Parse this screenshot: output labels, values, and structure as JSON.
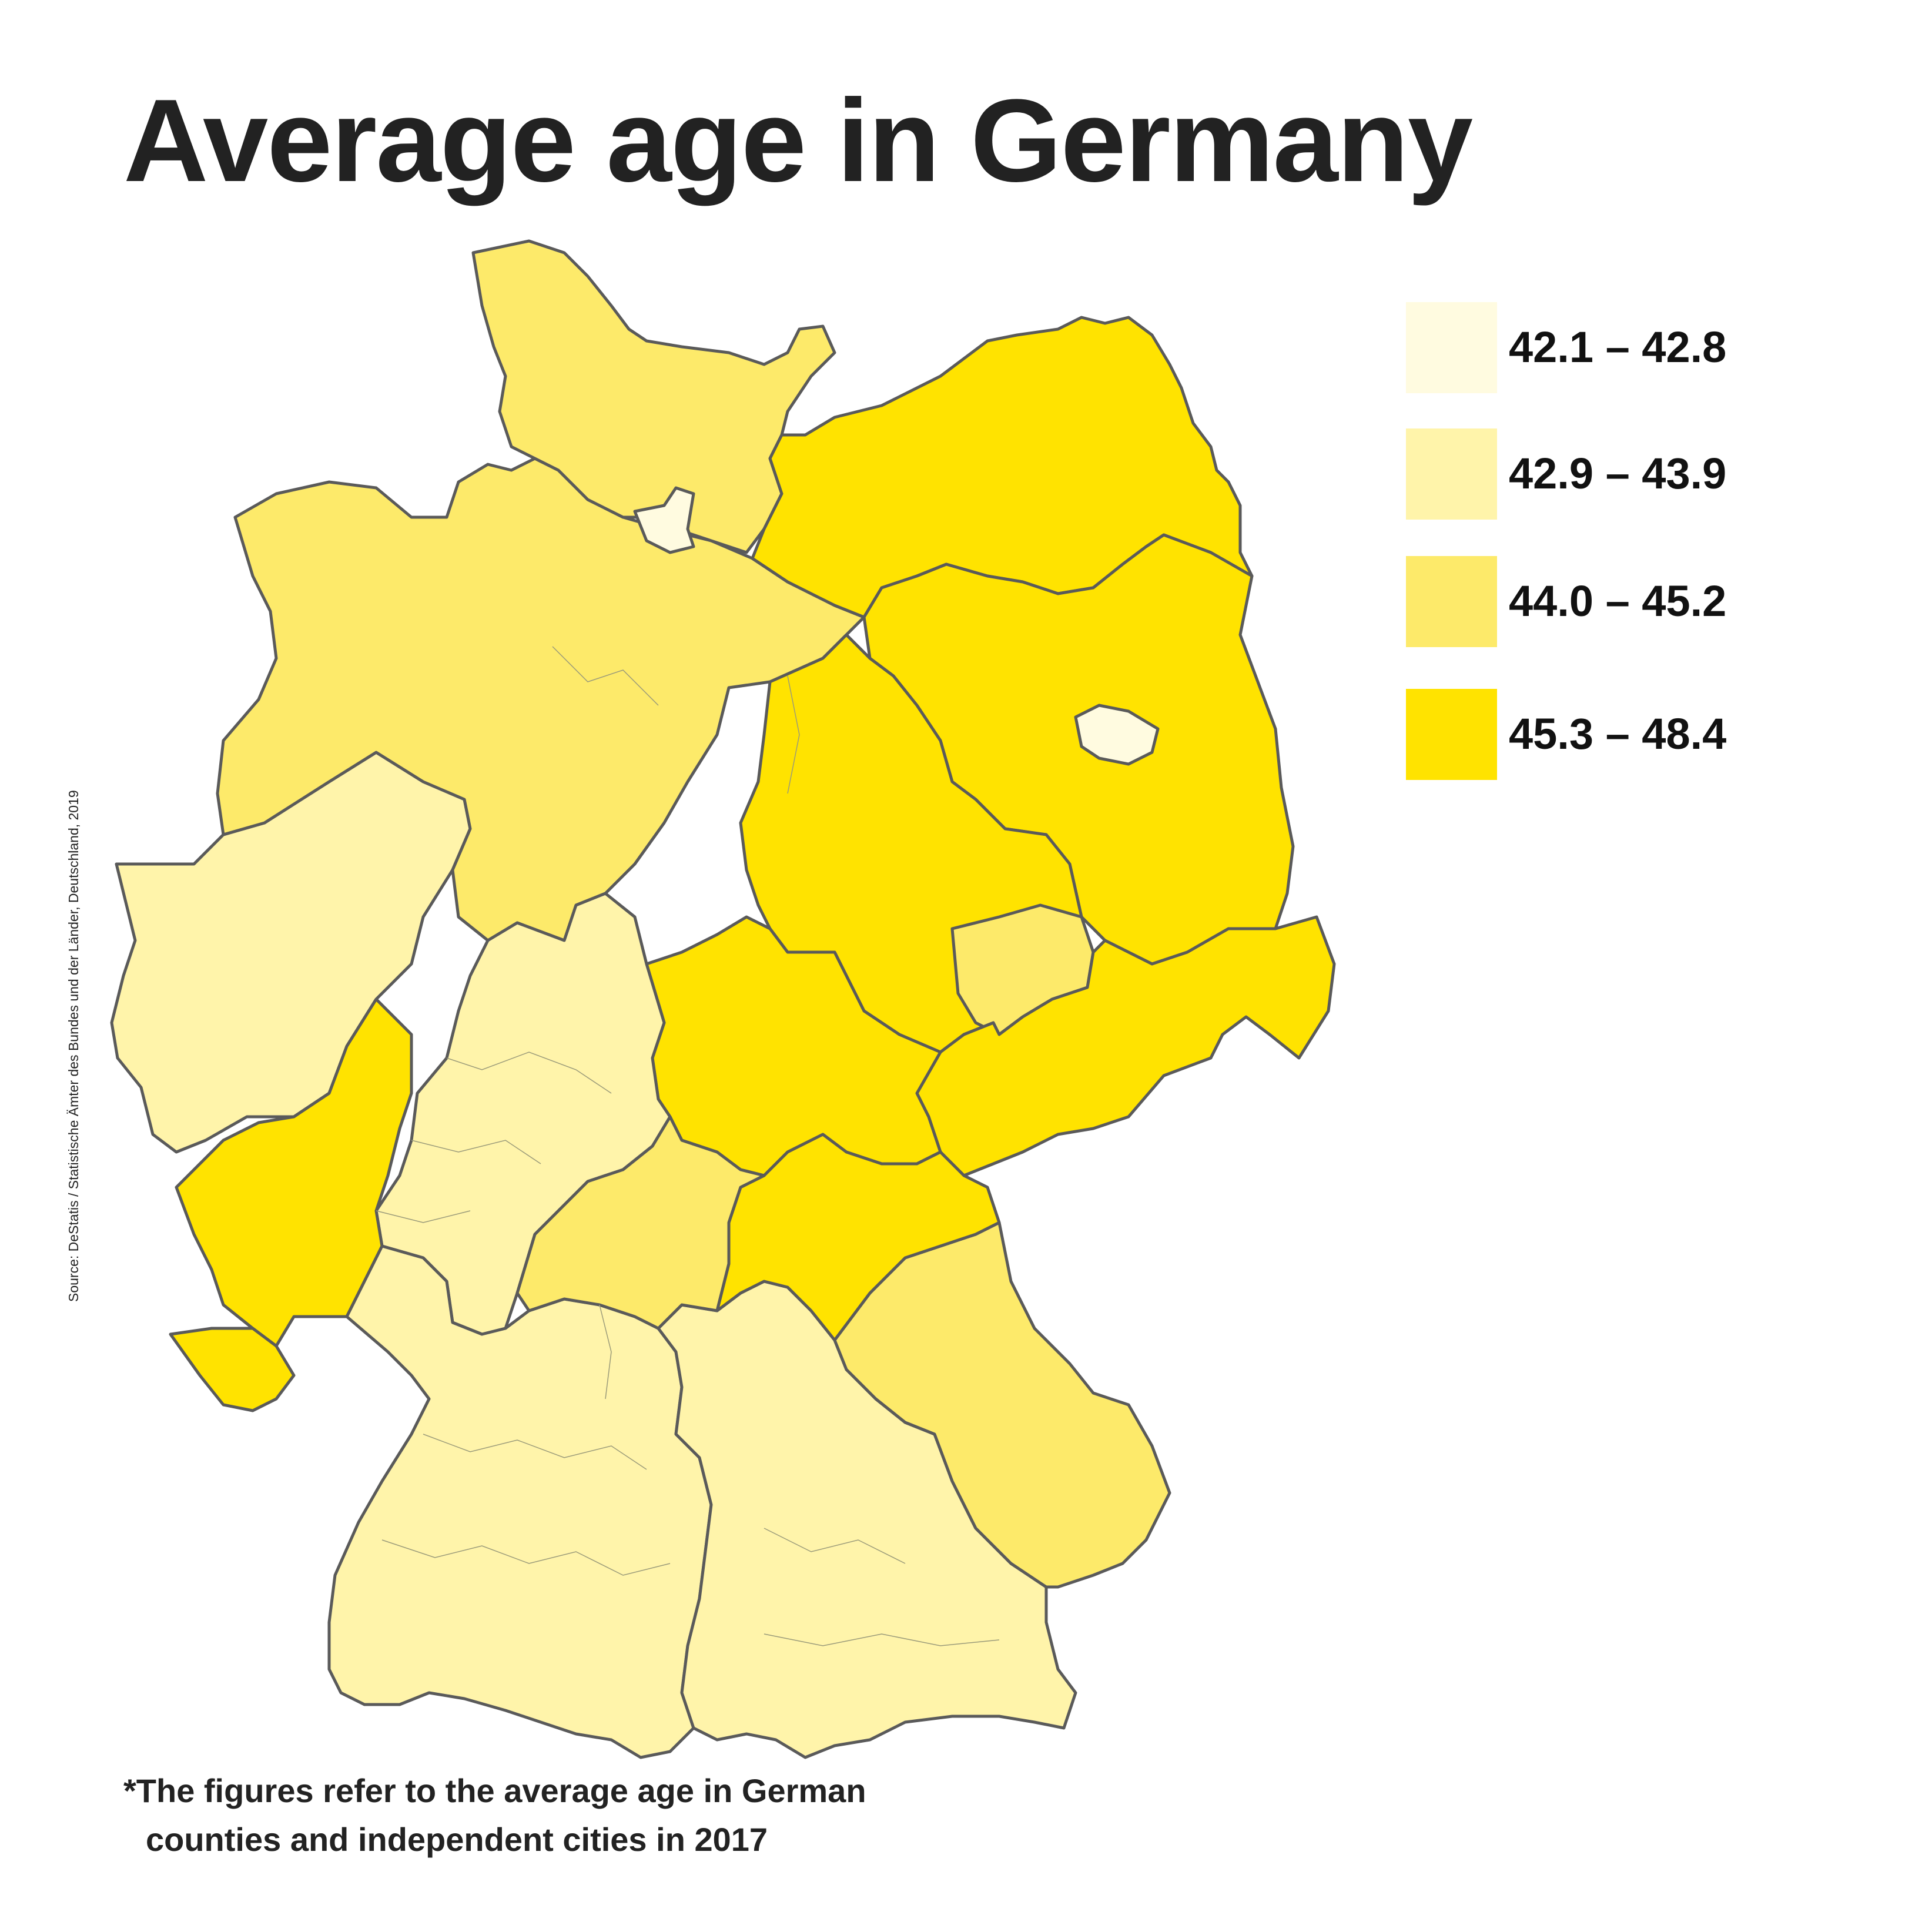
{
  "title": "Average age in Germany",
  "source": "Source: DeStatis / Statistische Ämter des Bundes und der Länder, Deutschland, 2019",
  "legend": [
    {
      "label": "42.1 – 42.8",
      "color": "#FFFBE0"
    },
    {
      "label": "42.9 – 43.9",
      "color": "#FFF4AA"
    },
    {
      "label": "44.0 – 45.2",
      "color": "#FDEA6A"
    },
    {
      "label": "45.3 – 48.4",
      "color": "#FFE300"
    }
  ],
  "footnote": {
    "line1": "*The figures refer to the average age in German",
    "line2": "counties and independent cities in 2017"
  },
  "regions": [
    {
      "name": "Schleswig-Holstein",
      "class": 2
    },
    {
      "name": "Hamburg",
      "class": 0
    },
    {
      "name": "Mecklenburg-Vorpommern",
      "class": 3
    },
    {
      "name": "Brandenburg",
      "class": 3
    },
    {
      "name": "Berlin",
      "class": 0
    },
    {
      "name": "Lower Saxony",
      "class": 2
    },
    {
      "name": "Saxony-Anhalt",
      "class": 3
    },
    {
      "name": "Thuringia",
      "class": 3
    },
    {
      "name": "Saxony",
      "class": 3
    },
    {
      "name": "Leipzig",
      "class": 2
    },
    {
      "name": "Hesse",
      "class": 1
    },
    {
      "name": "Rhineland-Palatinate",
      "class": 3
    },
    {
      "name": "Saarland",
      "class": 3
    },
    {
      "name": "Baden-Württemberg",
      "class": 1
    },
    {
      "name": "Bavaria",
      "class": 1
    },
    {
      "name": "Upper Franconia",
      "class": 3
    },
    {
      "name": "Upper Palatinate",
      "class": 2
    },
    {
      "name": "North Rhine-Westphalia",
      "class": 1
    }
  ]
}
